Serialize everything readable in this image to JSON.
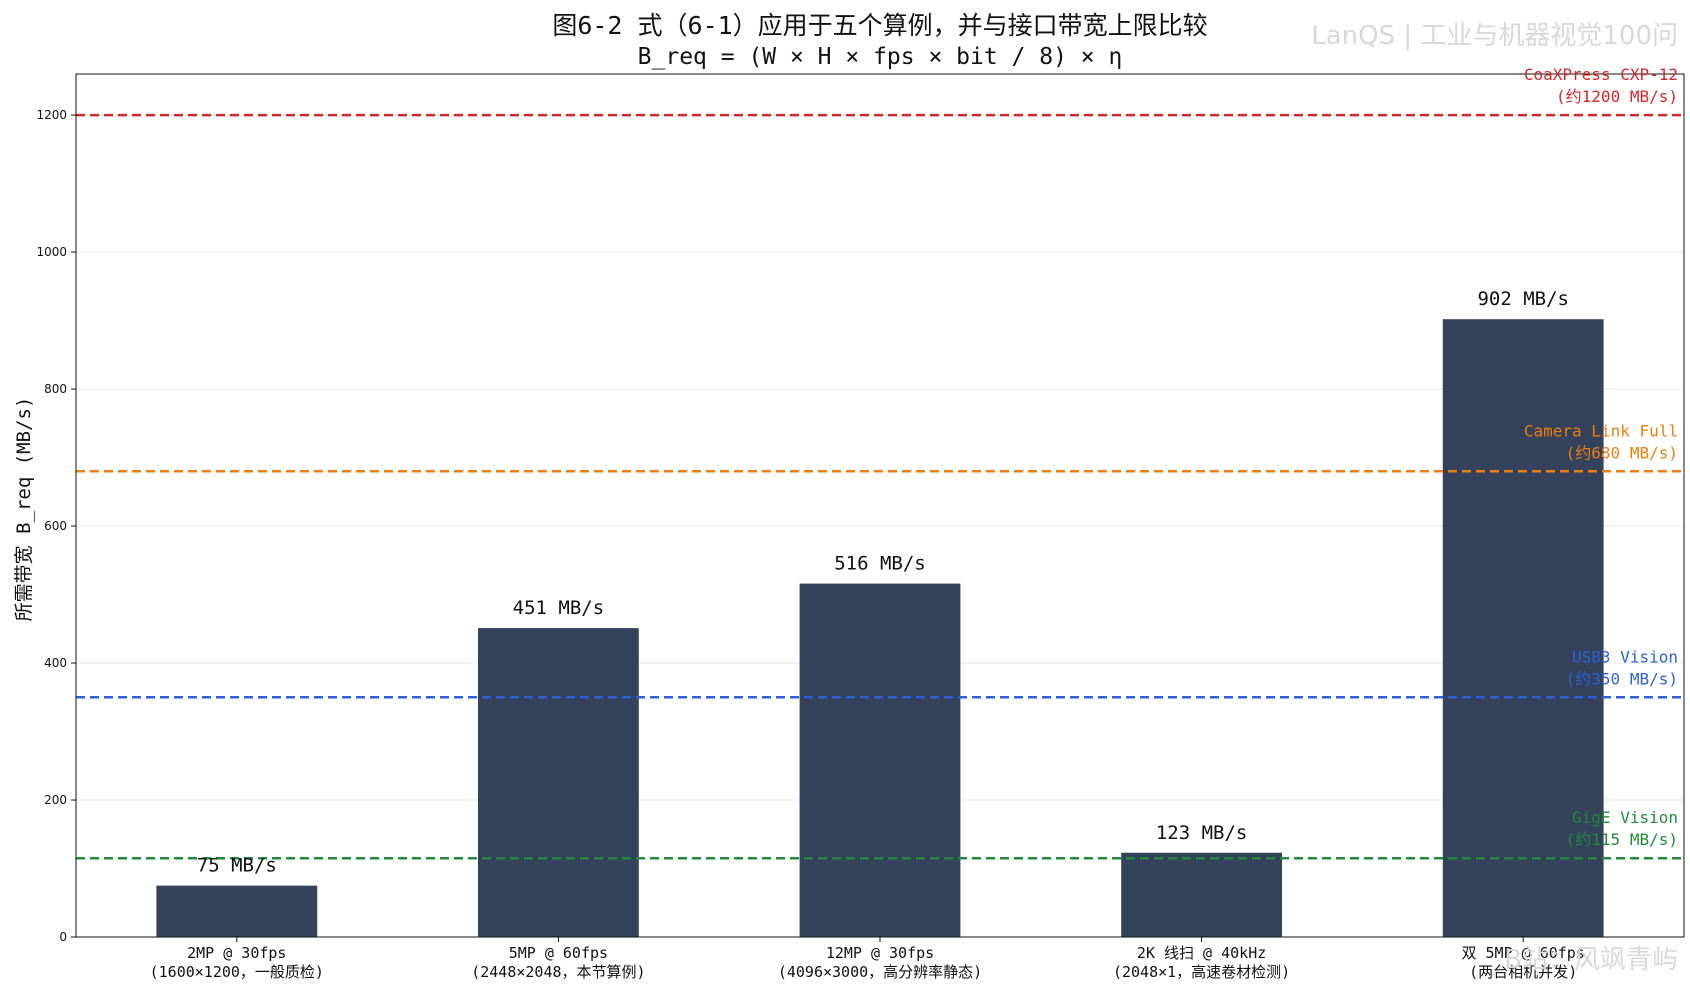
{
  "chart_data": {
    "type": "bar",
    "title": "图6-2  式（6-1）应用于五个算例，并与接口带宽上限比较",
    "subtitle": "B_req = (W × H × fps × bit / 8) × η",
    "ylabel": "所需带宽 B_req (MB/s)",
    "xlabel": "",
    "ylim": [
      0,
      1260
    ],
    "yticks": [
      0,
      200,
      400,
      600,
      800,
      1000,
      1200
    ],
    "grid": "horizontal",
    "bar_color": "#34435b",
    "categories": [
      {
        "line1": "2MP @ 30fps",
        "line2": "(1600×1200，一般质检)"
      },
      {
        "line1": "5MP @ 60fps",
        "line2": "(2448×2048，本节算例)"
      },
      {
        "line1": "12MP @ 30fps",
        "line2": "(4096×3000，高分辨率静态)"
      },
      {
        "line1": "2K 线扫 @ 40kHz",
        "line2": "(2048×1，高速卷材检测)"
      },
      {
        "line1": "双 5MP @ 60fps",
        "line2": "(两台相机并发)"
      }
    ],
    "values": [
      75,
      451,
      516,
      123,
      902
    ],
    "value_labels": [
      "75 MB/s",
      "451 MB/s",
      "516 MB/s",
      "123 MB/s",
      "902 MB/s"
    ],
    "reference_lines": [
      {
        "name": "CoaXPress CXP-12",
        "note": "(约1200 MB/s)",
        "value": 1200,
        "color": "#d62728"
      },
      {
        "name": "Camera Link Full",
        "note": "(约680 MB/s)",
        "value": 680,
        "color": "#ee7f0e"
      },
      {
        "name": "USB3 Vision",
        "note": "(约350 MB/s)",
        "value": 350,
        "color": "#2b62d6"
      },
      {
        "name": "GigE Vision",
        "note": "(约115 MB/s)",
        "value": 115,
        "color": "#1e8c3a"
      }
    ]
  },
  "watermarks": {
    "top": "LanQS | 工业与机器视觉100问",
    "bottom": "B站：风飒青屿"
  }
}
